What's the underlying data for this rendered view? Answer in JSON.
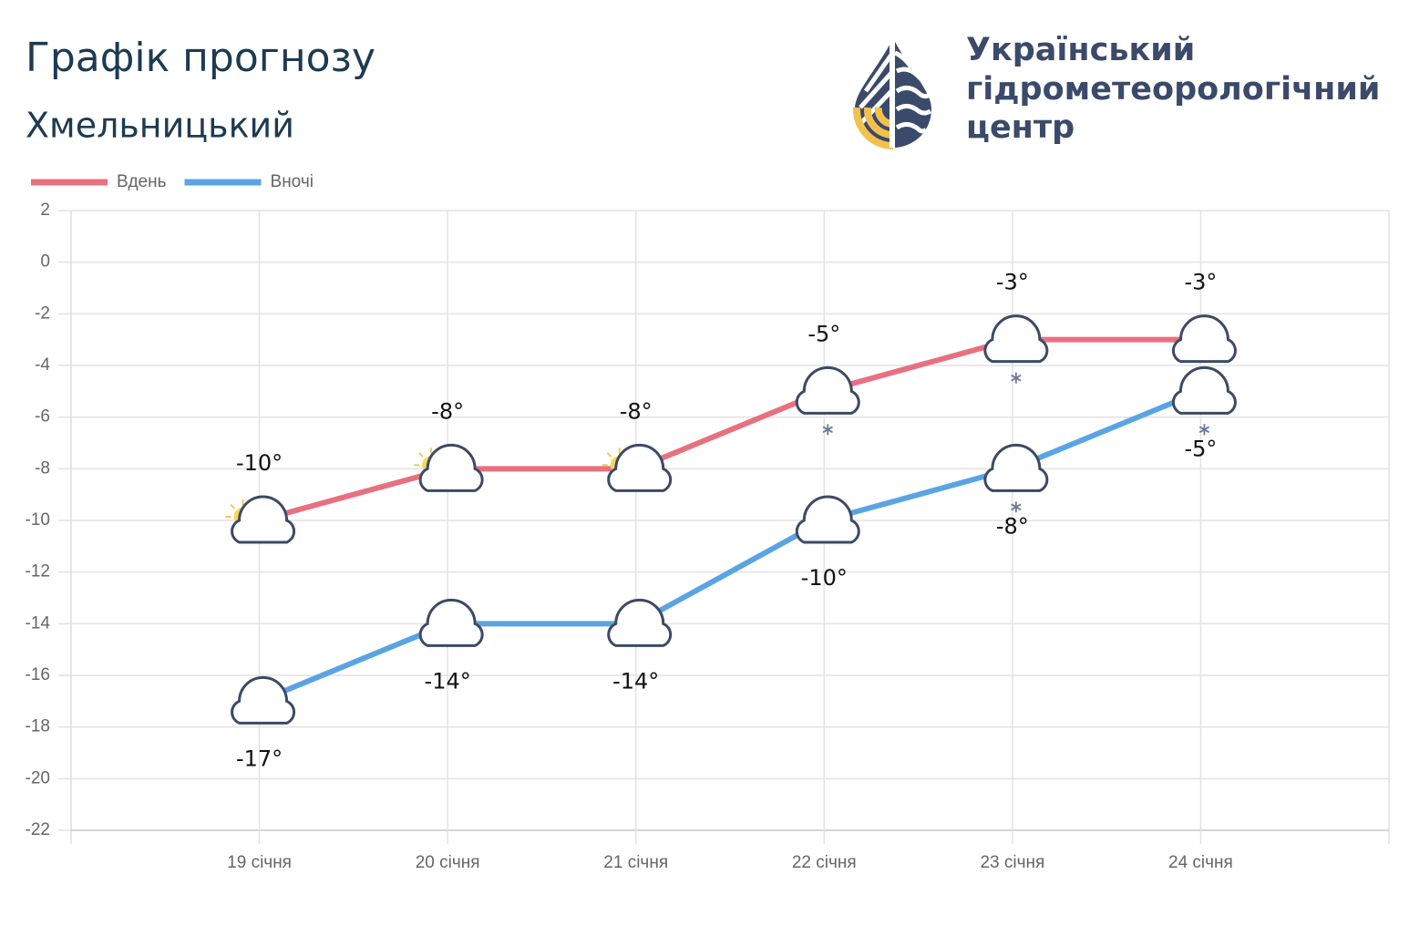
{
  "header": {
    "title": "Графік прогнозу",
    "subtitle": "Хмельницький",
    "logo_text": [
      "Український",
      "гідрометеорологічний",
      "центр"
    ]
  },
  "chart_data": {
    "type": "line",
    "categories": [
      "19 січня",
      "20 січня",
      "21 січня",
      "22 січня",
      "23 січня",
      "24 січня"
    ],
    "series": [
      {
        "name": "Вдень",
        "color": "#e8707f",
        "values": [
          -10,
          -8,
          -8,
          -5,
          -3,
          -3
        ],
        "value_labels": [
          "-10°",
          "-8°",
          "-8°",
          "-5°",
          "-3°",
          "-3°"
        ]
      },
      {
        "name": "Вночі",
        "color": "#5aa4e4",
        "values": [
          -17,
          -14,
          -14,
          -10,
          -8,
          -5
        ],
        "value_labels": [
          "-17°",
          "-14°",
          "-14°",
          "-10°",
          "-8°",
          "-5°"
        ]
      }
    ],
    "ylim": [
      -22,
      2
    ],
    "yticks": [
      -22,
      -20,
      -18,
      -16,
      -14,
      -12,
      -10,
      -8,
      -6,
      -4,
      -2,
      0,
      2
    ],
    "grid": true,
    "legend": "top-left"
  }
}
